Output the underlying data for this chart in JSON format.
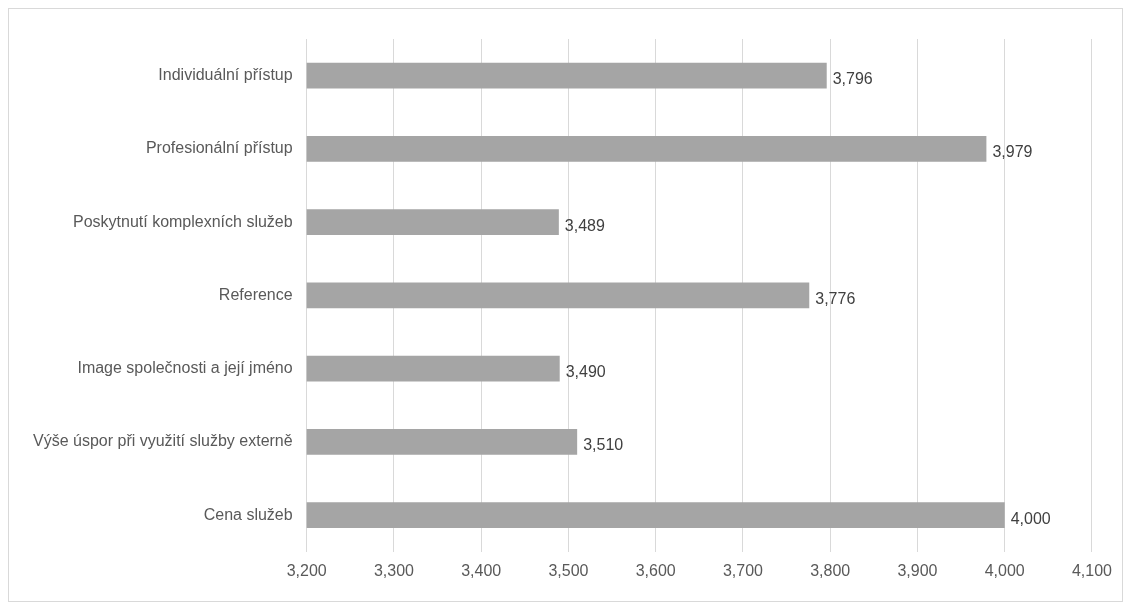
{
  "chart_data": {
    "type": "bar",
    "orientation": "horizontal",
    "categories": [
      "Individuální přístup",
      "Profesionální přístup",
      "Poskytnutí komplexních služeb",
      "Reference",
      "Image společnosti a její jméno",
      "Výše úspor při využití služby externě",
      "Cena služeb"
    ],
    "values": [
      3796,
      3979,
      3489,
      3776,
      3490,
      3510,
      4000
    ],
    "value_labels": [
      "3,796",
      "3,979",
      "3,489",
      "3,776",
      "3,490",
      "3,510",
      "4,000"
    ],
    "color": "#a5a5a5",
    "xlim": [
      3200,
      4100
    ],
    "xticks": [
      {
        "value": 3200,
        "label": "3,200"
      },
      {
        "value": 3300,
        "label": "3,300"
      },
      {
        "value": 3400,
        "label": "3,400"
      },
      {
        "value": 3500,
        "label": "3,500"
      },
      {
        "value": 3600,
        "label": "3,600"
      },
      {
        "value": 3700,
        "label": "3,700"
      },
      {
        "value": 3800,
        "label": "3,800"
      },
      {
        "value": 3900,
        "label": "3,900"
      },
      {
        "value": 4000,
        "label": "4,000"
      },
      {
        "value": 4100,
        "label": "4,100"
      }
    ],
    "grid": "x"
  }
}
